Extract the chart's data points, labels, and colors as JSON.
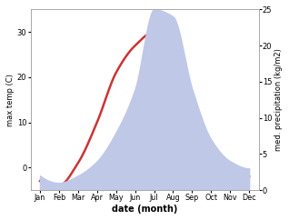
{
  "months": [
    "Jan",
    "Feb",
    "Mar",
    "Apr",
    "May",
    "Jun",
    "Jul",
    "Aug",
    "Sep",
    "Oct",
    "Nov",
    "Dec"
  ],
  "month_positions": [
    1,
    2,
    3,
    4,
    5,
    6,
    7,
    8,
    9,
    10,
    11,
    12
  ],
  "temperature": [
    -3,
    -4,
    1,
    10,
    21,
    27,
    30,
    25,
    16,
    5,
    0,
    -2
  ],
  "precipitation": [
    2,
    1,
    2,
    4,
    8,
    14,
    25,
    24,
    14,
    7,
    4,
    3
  ],
  "temp_color": "#cc3333",
  "precip_fill_color": "#c0c8e8",
  "temp_ylim": [
    -5,
    35
  ],
  "precip_ylim": [
    0,
    25
  ],
  "temp_yticks": [
    0,
    10,
    20,
    30
  ],
  "precip_yticks": [
    0,
    5,
    10,
    15,
    20,
    25
  ],
  "xlabel": "date (month)",
  "ylabel_left": "max temp (C)",
  "ylabel_right": "med. precipitation (kg/m2)",
  "bg_color": "#ffffff",
  "line_width": 1.8,
  "spine_color": "#aaaaaa"
}
